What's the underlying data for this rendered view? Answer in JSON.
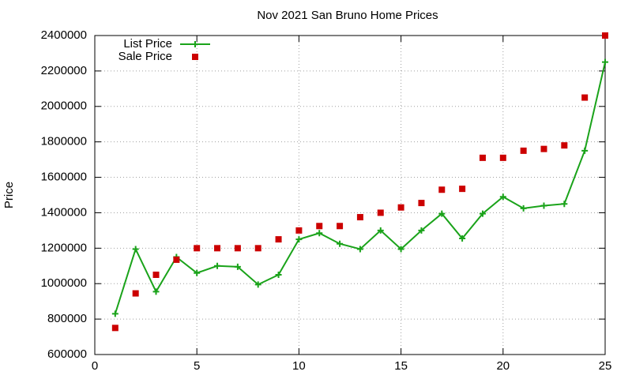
{
  "chart_data": {
    "type": "line",
    "title": "Nov 2021 San Bruno Home Prices",
    "y_label": "Price",
    "x": [
      1,
      2,
      3,
      4,
      5,
      6,
      7,
      8,
      9,
      10,
      11,
      12,
      13,
      14,
      15,
      16,
      17,
      18,
      19,
      20,
      21,
      22,
      23,
      24,
      25
    ],
    "series": [
      {
        "name": "List Price",
        "color": "#1aa31a",
        "style": "linespoints",
        "values": [
          830000,
          1195000,
          955000,
          1150000,
          1060000,
          1100000,
          1095000,
          995000,
          1050000,
          1250000,
          1285000,
          1225000,
          1195000,
          1300000,
          1195000,
          1300000,
          1395000,
          1255000,
          1395000,
          1490000,
          1425000,
          1440000,
          1450000,
          1750000,
          2250000
        ]
      },
      {
        "name": "Sale Price",
        "color": "#cc0000",
        "style": "points",
        "values": [
          750000,
          945000,
          1050000,
          1135000,
          1200000,
          1200000,
          1200000,
          1200000,
          1250000,
          1300000,
          1325000,
          1325000,
          1375000,
          1400000,
          1430000,
          1455000,
          1530000,
          1535000,
          1710000,
          1710000,
          1750000,
          1760000,
          1780000,
          2050000,
          2400000
        ]
      }
    ],
    "xlim": [
      0,
      25
    ],
    "xticks": [
      0,
      5,
      10,
      15,
      20,
      25
    ],
    "ylim": [
      600000,
      2400000
    ],
    "yticks": [
      600000,
      800000,
      1000000,
      1200000,
      1400000,
      1600000,
      1800000,
      2000000,
      2200000,
      2400000
    ],
    "grid": true,
    "legend": "top-left"
  }
}
